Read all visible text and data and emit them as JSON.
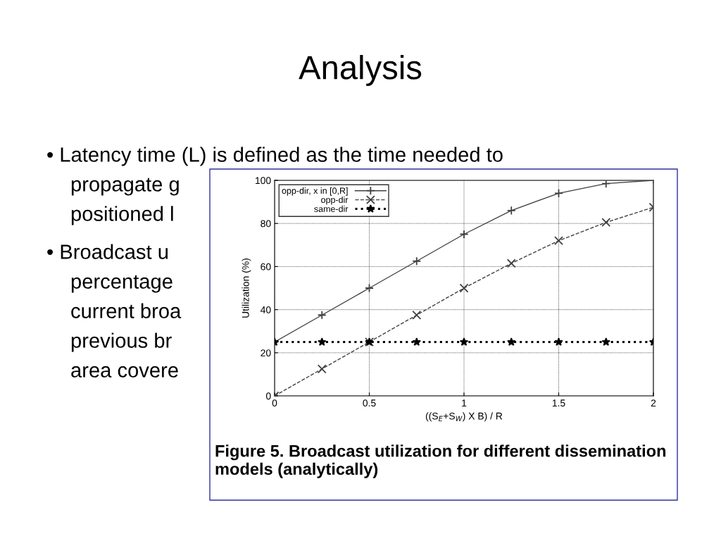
{
  "chart_data": {
    "type": "line",
    "title": "Analysis",
    "x": [
      0,
      0.25,
      0.5,
      0.75,
      1,
      1.25,
      1.5,
      1.75,
      2
    ],
    "series": [
      {
        "name": "opp-dir, x in [0,R]",
        "color": "#404040",
        "marker": "plus",
        "line_style": "solid",
        "values": [
          25,
          37.5,
          50,
          62.5,
          75,
          86,
          94,
          98.5,
          100
        ]
      },
      {
        "name": "opp-dir",
        "color": "#404040",
        "marker": "cross",
        "line_style": "dashed",
        "values": [
          0,
          12.5,
          25,
          37.5,
          50,
          61.5,
          72,
          80.5,
          87.5
        ]
      },
      {
        "name": "same-dir",
        "color": "#000000",
        "marker": "star",
        "line_style": "dotted",
        "values": [
          25,
          25,
          25,
          25,
          25,
          25,
          25,
          25,
          25
        ]
      }
    ],
    "xlim": [
      0,
      2
    ],
    "xticks": [
      0,
      0.5,
      1,
      1.5,
      2
    ],
    "ylim": [
      0,
      100
    ],
    "yticks": [
      0,
      20,
      40,
      60,
      80,
      100
    ],
    "xlabel": "((S$_{E}$+S$_{W}$) X B) / R",
    "ylabel": "Utilization (%)",
    "grid": true,
    "legend": "top left",
    "annotations": [
      "• Latency time (L) is defined as the time needed to",
      "propagate g",
      "positioned l",
      "• Broadcast u",
      "percentage",
      "current broa",
      "previous br",
      "area covere",
      "Figure 5. Broadcast utilization for different dissemination models (analytically)"
    ]
  }
}
